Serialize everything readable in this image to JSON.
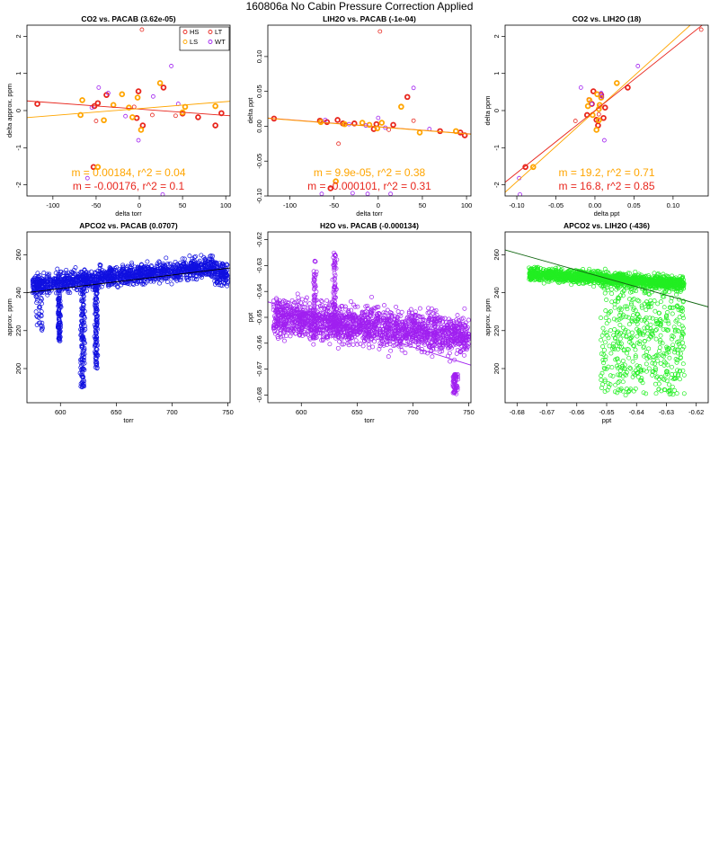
{
  "page": {
    "title": "160806a   No Cabin Pressure Correction Applied"
  },
  "chart_data": [
    {
      "id": "p1",
      "type": "scatter",
      "title": "CO2 vs. PACAB (3.62e-05)",
      "xlabel": "delta torr",
      "ylabel": "delta approx. ppm",
      "xlim": [
        -130,
        105
      ],
      "ylim": [
        -2.3,
        2.3
      ],
      "xticks": [
        -100,
        -50,
        0,
        50,
        100
      ],
      "yticks": [
        -2,
        -1,
        0,
        1,
        2
      ],
      "ytick_rotated": true,
      "legend": {
        "placement": "top-right",
        "entries": [
          {
            "label": "HS",
            "color": "#e8261d"
          },
          {
            "label": "LT",
            "color": "#e8261d"
          },
          {
            "label": "LS",
            "color": "#ffa500"
          },
          {
            "label": "WT",
            "color": "#a020f0"
          }
        ]
      },
      "annotations": [
        {
          "text": "m = 0.00184, r^2 = 0.04",
          "color": "#ffa500"
        },
        {
          "text": "m = -0.00176, r^2 = 0.1",
          "color": "#e8261d"
        }
      ],
      "lines": [
        {
          "color": "#e8261d",
          "x": [
            -130,
            105
          ],
          "y": [
            0.26,
            -0.14
          ]
        },
        {
          "color": "#ffa500",
          "x": [
            -130,
            105
          ],
          "y": [
            -0.19,
            0.25
          ]
        }
      ],
      "series": [
        {
          "color": "#e8261d",
          "thick": true,
          "points": [
            [
              -118,
              0.18
            ],
            [
              -52,
              0.12
            ],
            [
              -48,
              0.2
            ],
            [
              -38,
              0.42
            ],
            [
              -3,
              -0.2
            ],
            [
              -1,
              0.52
            ],
            [
              4,
              -0.4
            ],
            [
              28,
              0.62
            ],
            [
              50,
              -0.08
            ],
            [
              68,
              -0.18
            ],
            [
              88,
              -0.4
            ],
            [
              95,
              -0.07
            ],
            [
              -53,
              -1.52
            ]
          ]
        },
        {
          "color": "#e8261d",
          "thick": false,
          "points": [
            [
              3,
              2.18
            ],
            [
              -50,
              -0.28
            ],
            [
              -6,
              0.1
            ],
            [
              15,
              -0.12
            ],
            [
              42,
              -0.14
            ]
          ]
        },
        {
          "color": "#ffa500",
          "thick": true,
          "points": [
            [
              -66,
              0.28
            ],
            [
              -68,
              -0.12
            ],
            [
              -41,
              -0.26
            ],
            [
              -30,
              0.15
            ],
            [
              -20,
              0.44
            ],
            [
              -12,
              0.08
            ],
            [
              -8,
              -0.18
            ],
            [
              -2,
              0.35
            ],
            [
              2,
              -0.52
            ],
            [
              24,
              0.74
            ],
            [
              53,
              0.1
            ],
            [
              88,
              0.12
            ],
            [
              50,
              -0.05
            ],
            [
              -48,
              -1.52
            ]
          ]
        },
        {
          "color": "#a020f0",
          "thick": false,
          "points": [
            [
              -47,
              0.62
            ],
            [
              -36,
              0.47
            ],
            [
              -55,
              0.08
            ],
            [
              -16,
              -0.15
            ],
            [
              -1,
              -0.8
            ],
            [
              37,
              1.2
            ],
            [
              45,
              0.18
            ],
            [
              16,
              0.38
            ],
            [
              -60,
              -1.82
            ],
            [
              27,
              -2.26
            ]
          ]
        }
      ]
    },
    {
      "id": "p2",
      "type": "scatter",
      "title": "LIH2O vs. PACAB (-1e-04)",
      "xlabel": "delta torr",
      "ylabel": "delta ppt",
      "xlim": [
        -125,
        105
      ],
      "ylim": [
        -0.1,
        0.145
      ],
      "xticks": [
        -100,
        -50,
        0,
        50,
        100
      ],
      "yticks": [
        -0.1,
        -0.05,
        0.0,
        0.05,
        0.1
      ],
      "ytick_labels": [
        "-0.10",
        "-0.05",
        "0.00",
        "0.05",
        "0.10"
      ],
      "ytick_rotated": true,
      "annotations": [
        {
          "text": "m = 9.9e-05, r^2 = 0.38",
          "color": "#ffa500"
        },
        {
          "text": "m = -0.000101, r^2 = 0.31",
          "color": "#e8261d"
        }
      ],
      "lines": [
        {
          "color": "#e8261d",
          "x": [
            -125,
            105
          ],
          "y": [
            0.0118,
            -0.0112
          ]
        },
        {
          "color": "#ffa500",
          "x": [
            -125,
            105
          ],
          "y": [
            0.0114,
            -0.0114
          ]
        }
      ],
      "series": [
        {
          "color": "#e8261d",
          "thick": true,
          "points": [
            [
              -118,
              0.011
            ],
            [
              -66,
              0.008
            ],
            [
              -58,
              0.006
            ],
            [
              -46,
              0.009
            ],
            [
              -40,
              0.004
            ],
            [
              -27,
              0.004
            ],
            [
              -5,
              -0.004
            ],
            [
              -2,
              0.003
            ],
            [
              17,
              0.002
            ],
            [
              33,
              0.042
            ],
            [
              70,
              -0.007
            ],
            [
              93,
              -0.009
            ],
            [
              98,
              -0.013
            ],
            [
              -54,
              -0.089
            ]
          ]
        },
        {
          "color": "#e8261d",
          "thick": false,
          "points": [
            [
              2,
              0.136
            ],
            [
              -45,
              -0.025
            ],
            [
              12,
              -0.005
            ],
            [
              40,
              0.008
            ]
          ]
        },
        {
          "color": "#ffa500",
          "thick": true,
          "points": [
            [
              -65,
              0.006
            ],
            [
              -38,
              0.003
            ],
            [
              -18,
              0.005
            ],
            [
              -10,
              0.002
            ],
            [
              -1,
              -0.003
            ],
            [
              4,
              0.005
            ],
            [
              26,
              0.028
            ],
            [
              47,
              -0.009
            ],
            [
              88,
              -0.007
            ],
            [
              -48,
              -0.079
            ]
          ]
        },
        {
          "color": "#a020f0",
          "thick": false,
          "points": [
            [
              -60,
              0.009
            ],
            [
              -33,
              0.003
            ],
            [
              -14,
              0.001
            ],
            [
              0,
              0.012
            ],
            [
              8,
              -0.002
            ],
            [
              40,
              0.055
            ],
            [
              58,
              -0.004
            ],
            [
              -64,
              -0.097
            ],
            [
              -29,
              -0.096
            ],
            [
              -12,
              -0.097
            ],
            [
              14,
              -0.097
            ]
          ]
        }
      ]
    },
    {
      "id": "p3",
      "type": "scatter",
      "title": "CO2 vs. LIH2O (18)",
      "xlabel": "delta ppt",
      "ylabel": "delta ppm",
      "xlim": [
        -0.115,
        0.145
      ],
      "ylim": [
        -2.3,
        2.3
      ],
      "xticks": [
        -0.1,
        -0.05,
        0.0,
        0.05,
        0.1
      ],
      "xtick_labels": [
        "-0.10",
        "-0.05",
        "0.00",
        "0.05",
        "0.10"
      ],
      "yticks": [
        -2,
        -1,
        0,
        1,
        2
      ],
      "ytick_rotated": true,
      "annotations": [
        {
          "text": "m = 19.2, r^2 = 0.71",
          "color": "#ffa500"
        },
        {
          "text": "m = 16.8, r^2 = 0.85",
          "color": "#e8261d"
        }
      ],
      "lines": [
        {
          "color": "#ffa500",
          "x": [
            -0.115,
            0.122
          ],
          "y": [
            -2.2,
            2.3
          ]
        },
        {
          "color": "#e8261d",
          "x": [
            -0.115,
            0.145
          ],
          "y": [
            -1.93,
            2.43
          ]
        }
      ],
      "series": [
        {
          "color": "#e8261d",
          "thick": true,
          "points": [
            [
              -0.089,
              -1.52
            ],
            [
              -0.01,
              -0.12
            ],
            [
              -0.004,
              0.18
            ],
            [
              -0.002,
              0.52
            ],
            [
              0.004,
              -0.4
            ],
            [
              0.008,
              0.42
            ],
            [
              0.011,
              -0.2
            ],
            [
              0.013,
              0.08
            ],
            [
              0.002,
              -0.25
            ],
            [
              0.042,
              0.62
            ]
          ]
        },
        {
          "color": "#e8261d",
          "thick": false,
          "points": [
            [
              0.136,
              2.18
            ],
            [
              -0.008,
              0.3
            ],
            [
              0.005,
              -0.1
            ],
            [
              -0.025,
              -0.28
            ],
            [
              0.006,
              0.1
            ]
          ]
        },
        {
          "color": "#ffa500",
          "thick": true,
          "points": [
            [
              -0.079,
              -1.52
            ],
            [
              -0.009,
              0.12
            ],
            [
              0.003,
              0.44
            ],
            [
              -0.003,
              -0.12
            ],
            [
              0.005,
              -0.26
            ],
            [
              0.006,
              0.15
            ],
            [
              0.008,
              0.35
            ],
            [
              0.002,
              -0.52
            ],
            [
              0.028,
              0.74
            ],
            [
              -0.007,
              0.28
            ],
            [
              0.005,
              0.04
            ]
          ]
        },
        {
          "color": "#a020f0",
          "thick": false,
          "points": [
            [
              -0.097,
              -1.82
            ],
            [
              -0.096,
              -2.26
            ],
            [
              -0.018,
              0.62
            ],
            [
              0.012,
              -0.8
            ],
            [
              0.055,
              1.2
            ],
            [
              -0.004,
              0.18
            ],
            [
              0.008,
              0.47
            ],
            [
              0.009,
              0.38
            ]
          ]
        }
      ]
    },
    {
      "id": "p4",
      "type": "scatter",
      "title": "APCO2 vs. PACAB (0.0707)",
      "xlabel": "torr",
      "ylabel": "approx. ppm",
      "xlim": [
        570,
        752
      ],
      "ylim": [
        182,
        272
      ],
      "xticks": [
        600,
        650,
        700,
        750
      ],
      "yticks": [
        200,
        220,
        240,
        260
      ],
      "ytick_rotated": true,
      "generated": "dense",
      "point_color": "#1010e0",
      "point_count": 1800,
      "density_note": "dense band 240-260 across 575-750; dips near 600 and 620-635",
      "lines": [
        {
          "color": "#000000",
          "x": [
            570,
            752
          ],
          "y": [
            240.0,
            253.0
          ]
        }
      ]
    },
    {
      "id": "p5",
      "type": "scatter",
      "title": "H2O vs. PACAB (-0.000134)",
      "xlabel": "torr",
      "ylabel": "ppt",
      "xlim": [
        570,
        752
      ],
      "ylim": [
        -0.683,
        -0.617
      ],
      "xticks": [
        600,
        650,
        700,
        750
      ],
      "yticks": [
        -0.68,
        -0.67,
        -0.66,
        -0.65,
        -0.64,
        -0.63,
        -0.62
      ],
      "ytick_rotated": true,
      "generated": "dense",
      "point_color": "#a020f0",
      "point_count": 2000,
      "lines": [
        {
          "color": "#a020f0",
          "x": [
            570,
            752
          ],
          "y": [
            -0.644,
            -0.6685
          ]
        }
      ]
    },
    {
      "id": "p6",
      "type": "scatter",
      "title": "APCO2 vs. LIH2O (-436)",
      "xlabel": "ppt",
      "ylabel": "approx. ppm",
      "xlim": [
        -0.684,
        -0.616
      ],
      "ylim": [
        182,
        272
      ],
      "xticks": [
        -0.68,
        -0.67,
        -0.66,
        -0.65,
        -0.64,
        -0.63,
        -0.62
      ],
      "yticks": [
        200,
        220,
        240,
        260
      ],
      "ytick_rotated": true,
      "generated": "dense",
      "point_color": "#22ee22",
      "point_count": 2000,
      "lines": [
        {
          "color": "#116611",
          "x": [
            -0.684,
            -0.616
          ],
          "y": [
            262.5,
            232.5
          ]
        }
      ]
    }
  ]
}
